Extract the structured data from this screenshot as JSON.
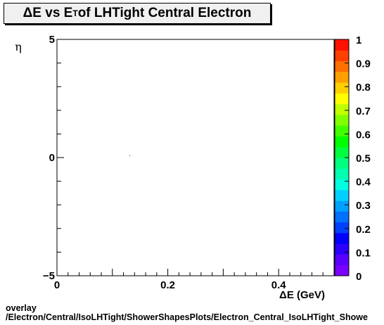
{
  "title": {
    "prefix": "ΔE vs E",
    "subscript": "T",
    "suffix": " of LHTight Central  Electron"
  },
  "footer": {
    "line1": "overlay",
    "line2": "/Electron/Central/IsoLHTight/ShowerShapesPlots/Electron_Central_IsoLHTight_Showe"
  },
  "chart_data": {
    "type": "heatmap",
    "xlabel": "ΔE (GeV)",
    "ylabel": "η",
    "xlim": [
      0,
      0.5
    ],
    "ylim": [
      -5,
      5
    ],
    "x_ticks": [
      0,
      0.2,
      0.4
    ],
    "x_tick_labels": [
      "0",
      "0.2",
      "0.4"
    ],
    "y_ticks": [
      -5,
      0,
      5
    ],
    "y_tick_labels": [
      "−5",
      "0",
      "5"
    ],
    "zlim": [
      0,
      1
    ],
    "z_ticks": [
      0,
      0.1,
      0.2,
      0.3,
      0.4,
      0.5,
      0.6,
      0.7,
      0.8,
      0.9,
      1
    ],
    "z_tick_labels": [
      "0",
      "0.1",
      "0.2",
      "0.3",
      "0.4",
      "0.5",
      "0.6",
      "0.7",
      "0.8",
      "0.9",
      "1"
    ],
    "points": [
      {
        "x": 0.131,
        "y": 0.1,
        "z": 0.5
      }
    ],
    "palette": [
      "#7a00ff",
      "#5a00ff",
      "#2a00ff",
      "#0000ff",
      "#0040ff",
      "#0070ff",
      "#00a0ff",
      "#00d0ff",
      "#00ffe0",
      "#00ffb0",
      "#00ff80",
      "#00ff40",
      "#00ff00",
      "#40ff00",
      "#80ff00",
      "#c0ff00",
      "#ffff00",
      "#ffd000",
      "#ffa000",
      "#ff7000",
      "#ff4000",
      "#ff1000"
    ]
  }
}
